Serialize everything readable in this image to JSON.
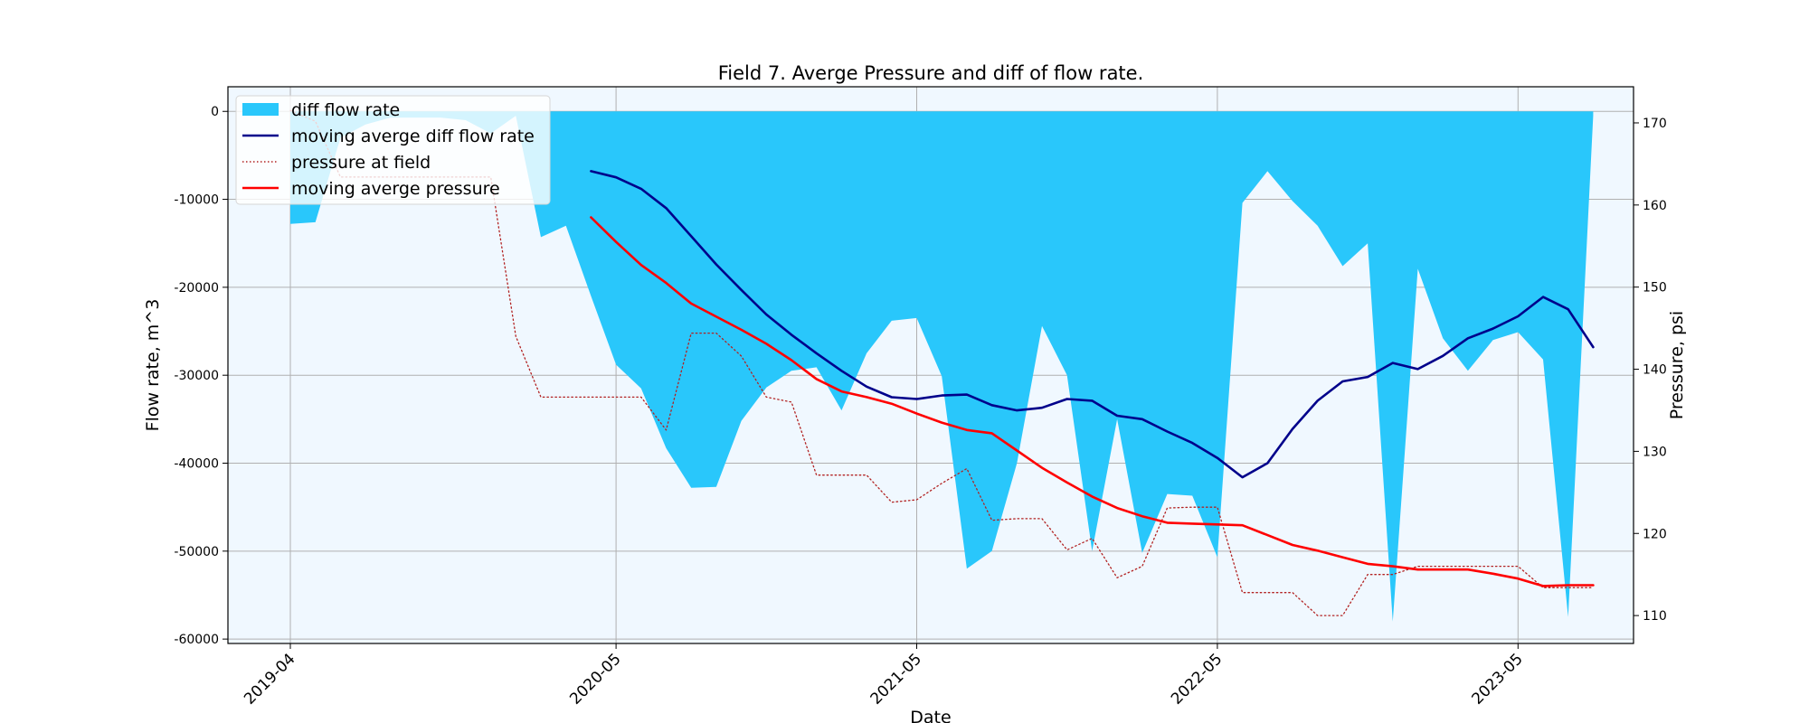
{
  "chart_data": {
    "type": "area",
    "title": "Field 7. Averge Pressure and diff of flow rate.",
    "xlabel": "Date",
    "ylabel_left": "Flow rate, m^3",
    "ylabel_right": "Pressure, psi",
    "grid": true,
    "legend_position": "top-left",
    "x_ticks": [
      "2019-04",
      "2020-05",
      "2021-05",
      "2022-05",
      "2023-05"
    ],
    "x_tick_months": [
      0,
      13,
      25,
      37,
      49
    ],
    "ylim_left": [
      -60500,
      2800
    ],
    "yticks_left": [
      0,
      -10000,
      -20000,
      -30000,
      -40000,
      -50000,
      -60000
    ],
    "ylim_right": [
      106.6,
      174.4
    ],
    "yticks_right": [
      110,
      120,
      130,
      140,
      150,
      160,
      170
    ],
    "x_unit": "month",
    "x_start": "2019-04",
    "series": [
      {
        "name": "diff flow rate",
        "axis": "left",
        "style": "fill",
        "color": "#29c7fb",
        "x": [
          0,
          1,
          2,
          3,
          4,
          5,
          6,
          7,
          8,
          9,
          10,
          11,
          12,
          13,
          14,
          15,
          16,
          17,
          18,
          19,
          20,
          21,
          22,
          23,
          24,
          25,
          26,
          27,
          28,
          29,
          30,
          31,
          32,
          33,
          34,
          35,
          36,
          37,
          38,
          39,
          40,
          41,
          42,
          43,
          44,
          45,
          46,
          47,
          48,
          49,
          50,
          51,
          52
        ],
        "y": [
          -12800,
          -12600,
          -3000,
          -1500,
          -700,
          -700,
          -700,
          -1000,
          -2500,
          -500,
          -14300,
          -13000,
          -21000,
          -28800,
          -31500,
          -38300,
          -42800,
          -42700,
          -35200,
          -31400,
          -29500,
          -29100,
          -34000,
          -27500,
          -23800,
          -23500,
          -30100,
          -52000,
          -50000,
          -40000,
          -24400,
          -30000,
          -50000,
          -35000,
          -50200,
          -43500,
          -43700,
          -50700,
          -10400,
          -6800,
          -10200,
          -13000,
          -17600,
          -15000,
          -58000,
          -17900,
          -25800,
          -29500,
          -26000,
          -25100,
          -28200,
          -57500,
          -500
        ]
      },
      {
        "name": "moving averge diff flow rate",
        "axis": "left",
        "style": "line",
        "color": "#00008b",
        "x": [
          12,
          13,
          14,
          15,
          16,
          17,
          18,
          19,
          20,
          21,
          22,
          23,
          24,
          25,
          26,
          27,
          28,
          29,
          30,
          31,
          32,
          33,
          34,
          35,
          36,
          37,
          38,
          39,
          40,
          41,
          42,
          43,
          44,
          45,
          46,
          47,
          48,
          49,
          50,
          51,
          52
        ],
        "y": [
          -6800,
          -7500,
          -8800,
          -11000,
          -14200,
          -17400,
          -20300,
          -23100,
          -25400,
          -27500,
          -29500,
          -31300,
          -32500,
          -32700,
          -32300,
          -32200,
          -33400,
          -34000,
          -33700,
          -32700,
          -32900,
          -34600,
          -35000,
          -36400,
          -37700,
          -39400,
          -41600,
          -40000,
          -36100,
          -32900,
          -30700,
          -30200,
          -28600,
          -29300,
          -27800,
          -25800,
          -24700,
          -23300,
          -21100,
          -22500,
          -26800
        ]
      },
      {
        "name": "pressure at field",
        "axis": "right",
        "style": "dotted",
        "color": "#b22222",
        "x": [
          0,
          1,
          2,
          3,
          4,
          5,
          6,
          7,
          8,
          9,
          10,
          11,
          12,
          13,
          14,
          15,
          16,
          17,
          18,
          19,
          20,
          21,
          22,
          23,
          24,
          25,
          26,
          27,
          28,
          29,
          30,
          31,
          32,
          33,
          34,
          35,
          36,
          37,
          38,
          39,
          40,
          41,
          42,
          43,
          44,
          45,
          46,
          47,
          48,
          49,
          50,
          51,
          52
        ],
        "y": [
          171.5,
          170.2,
          163.4,
          163.4,
          163.4,
          163.4,
          163.4,
          163.4,
          163.4,
          144,
          136.6,
          136.6,
          136.6,
          136.6,
          136.6,
          132.6,
          144.4,
          144.4,
          141.6,
          136.6,
          136,
          127.1,
          127.1,
          127.1,
          123.8,
          124.1,
          126.1,
          127.9,
          121.6,
          121.8,
          121.8,
          118,
          119.4,
          114.6,
          116,
          123.1,
          123.2,
          123.2,
          112.8,
          112.8,
          112.8,
          110,
          110,
          115,
          115,
          116,
          116,
          116,
          116,
          116,
          113.4,
          113.4,
          113.4
        ]
      },
      {
        "name": "moving averge pressure",
        "axis": "right",
        "style": "line",
        "color": "#ff0000",
        "x": [
          12,
          13,
          14,
          15,
          16,
          17,
          18,
          19,
          20,
          21,
          22,
          23,
          24,
          25,
          26,
          27,
          28,
          29,
          30,
          31,
          32,
          33,
          34,
          35,
          36,
          37,
          38,
          39,
          40,
          41,
          42,
          43,
          44,
          45,
          46,
          47,
          48,
          49,
          50,
          51,
          52
        ],
        "y": [
          158.5,
          155.5,
          152.7,
          150.5,
          148,
          146.4,
          144.8,
          143.1,
          141.1,
          138.8,
          137.3,
          136.6,
          135.8,
          134.6,
          133.5,
          132.6,
          132.2,
          130.1,
          128,
          126.2,
          124.5,
          123.1,
          122.1,
          121.3,
          121.2,
          121.1,
          121,
          119.8,
          118.6,
          117.9,
          117.1,
          116.3,
          116,
          115.6,
          115.6,
          115.6,
          115.1,
          114.5,
          113.6,
          113.7,
          113.7
        ]
      }
    ]
  }
}
